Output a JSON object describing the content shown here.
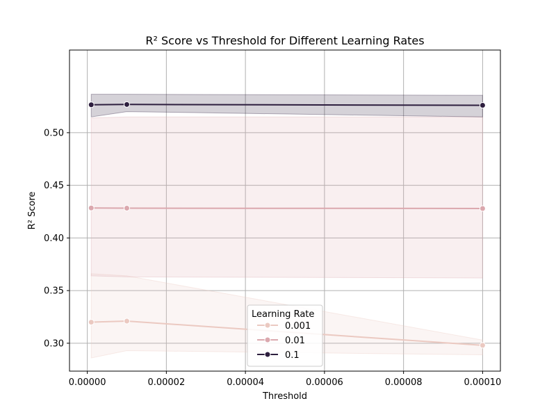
{
  "chart_data": {
    "type": "line",
    "title": "R² Score vs Threshold for Different Learning Rates",
    "xlabel": "Threshold",
    "ylabel": "R² Score",
    "xlim": [
      -4.5e-06,
      0.0001045
    ],
    "ylim": [
      0.2735,
      0.5785
    ],
    "x_ticks": [
      {
        "value": 0.0,
        "label": "0.00000"
      },
      {
        "value": 2e-05,
        "label": "0.00002"
      },
      {
        "value": 4e-05,
        "label": "0.00004"
      },
      {
        "value": 6e-05,
        "label": "0.00006"
      },
      {
        "value": 8e-05,
        "label": "0.00008"
      },
      {
        "value": 0.0001,
        "label": "0.00010"
      }
    ],
    "y_ticks": [
      {
        "value": 0.3,
        "label": "0.30"
      },
      {
        "value": 0.35,
        "label": "0.35"
      },
      {
        "value": 0.4,
        "label": "0.40"
      },
      {
        "value": 0.45,
        "label": "0.45"
      },
      {
        "value": 0.5,
        "label": "0.50"
      }
    ],
    "grid": true,
    "legend": {
      "title": "Learning Rate",
      "placement": "lower-center"
    },
    "x": [
      1e-06,
      1e-05,
      0.0001
    ],
    "series": [
      {
        "name": "0.001",
        "color": "#ebc9c1",
        "values": [
          0.32,
          0.321,
          0.298
        ],
        "lower": [
          0.286,
          0.293,
          0.289
        ],
        "upper": [
          0.366,
          0.364,
          0.303
        ]
      },
      {
        "name": "0.01",
        "color": "#dba8ae",
        "values": [
          0.4285,
          0.4283,
          0.428
        ],
        "lower": [
          0.364,
          0.363,
          0.362
        ],
        "upper": [
          0.514,
          0.515,
          0.515
        ]
      },
      {
        "name": "0.1",
        "color": "#2d1e3e",
        "values": [
          0.5265,
          0.5268,
          0.526
        ],
        "lower": [
          0.515,
          0.52,
          0.515
        ],
        "upper": [
          0.5365,
          0.5365,
          0.5355
        ]
      }
    ]
  }
}
